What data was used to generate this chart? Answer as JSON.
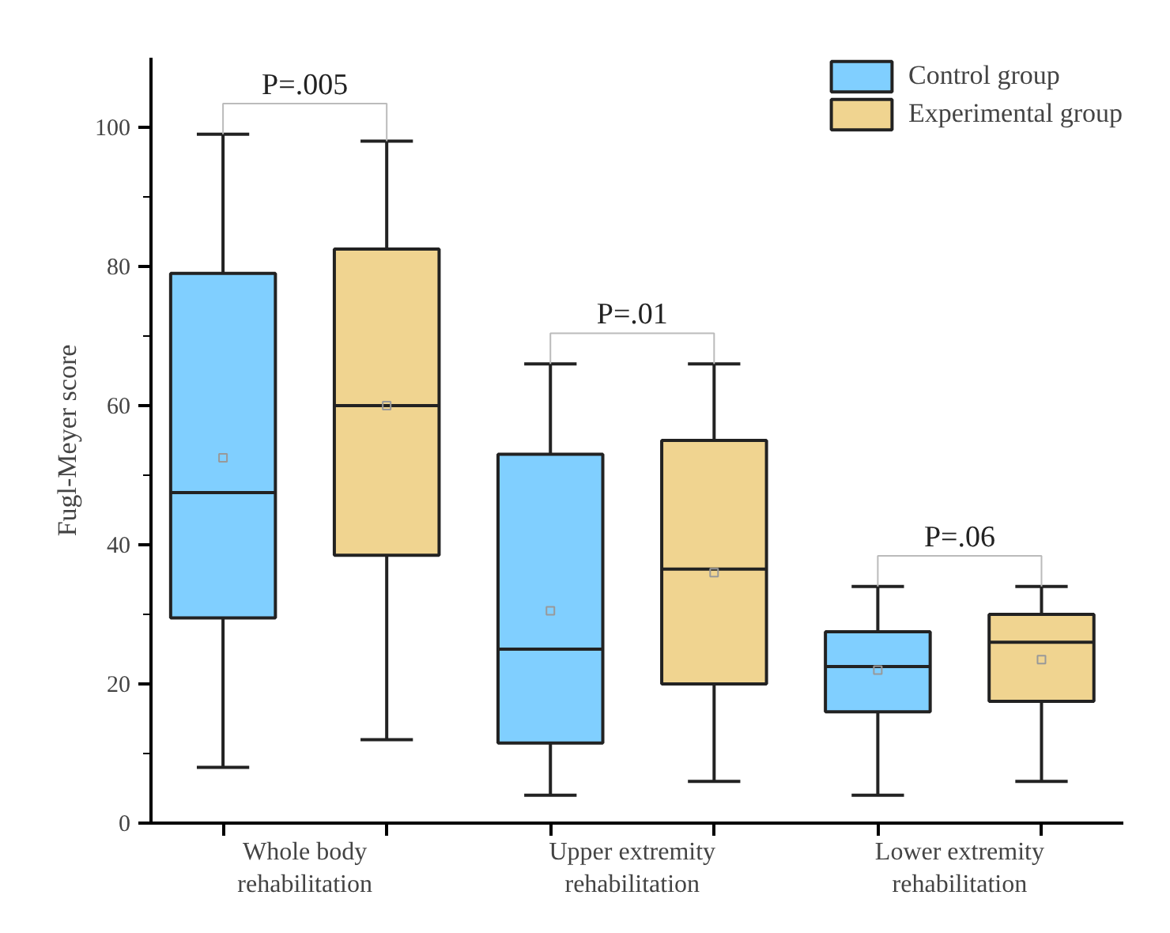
{
  "chart_data": {
    "type": "box",
    "ylabel": "Fugl-Meyer score",
    "categories": [
      "Whole body rehabilitation",
      "Upper extremity rehabilitation",
      "Lower extremity rehabilitation"
    ],
    "series": [
      {
        "name": "Control group",
        "color": "#80cfff",
        "boxes": [
          {
            "low": 8,
            "q1": 29.5,
            "median": 47.5,
            "q3": 79,
            "high": 99,
            "mean": 52.5
          },
          {
            "low": 4,
            "q1": 11.5,
            "median": 25,
            "q3": 53,
            "high": 66,
            "mean": 30.5
          },
          {
            "low": 4,
            "q1": 16,
            "median": 22.5,
            "q3": 27.5,
            "high": 34,
            "mean": 22
          }
        ]
      },
      {
        "name": "Experimental group",
        "color": "#f0d490",
        "boxes": [
          {
            "low": 12,
            "q1": 38.5,
            "median": 60,
            "q3": 82.5,
            "high": 98,
            "mean": 60
          },
          {
            "low": 6,
            "q1": 20,
            "median": 36.5,
            "q3": 55,
            "high": 66,
            "mean": 36
          },
          {
            "low": 6,
            "q1": 17.5,
            "median": 26,
            "q3": 30,
            "high": 34,
            "mean": 23.5
          }
        ]
      }
    ],
    "ylim": [
      0,
      110
    ],
    "yticks": [
      0,
      20,
      40,
      60,
      80,
      100
    ],
    "annotations": [
      "P=.005",
      "P=.01",
      "P=.06"
    ],
    "grid": false,
    "legend": "top right"
  }
}
